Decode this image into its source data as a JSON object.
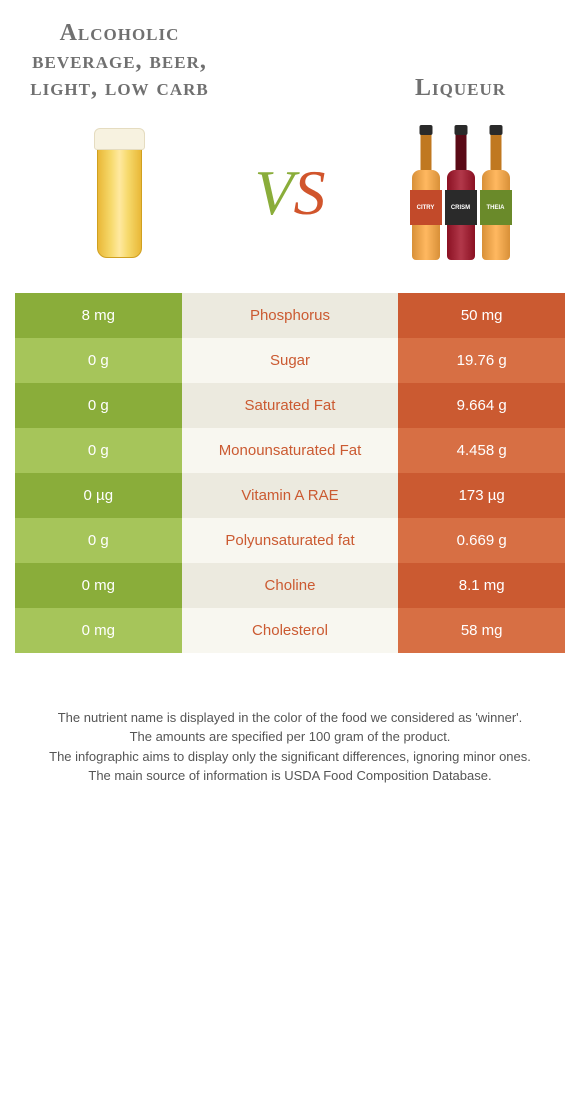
{
  "header": {
    "left_title": "Alcoholic beverage, beer, light, low carb",
    "right_title": "Liqueur",
    "vs_v": "V",
    "vs_s": "S"
  },
  "colors": {
    "green_dark": "#8aad3a",
    "green_light": "#a6c55a",
    "mid_dark": "#eceadf",
    "mid_light": "#f8f7f0",
    "orange_dark": "#cb5a31",
    "orange_light": "#d76f44",
    "winner_orange": "#cb5a31"
  },
  "bottles": [
    {
      "body": "#d89038",
      "neck": "#c07820",
      "label_bg": "#c24a2a",
      "label": "CITRY"
    },
    {
      "body": "#8a1022",
      "neck": "#5a0a16",
      "label_bg": "#2a2a2a",
      "label": "CRISM"
    },
    {
      "body": "#d89038",
      "neck": "#c07820",
      "label_bg": "#6a8a2a",
      "label": "THEIA"
    }
  ],
  "nutrients": [
    {
      "name": "Phosphorus",
      "left": "8 mg",
      "right": "50 mg",
      "winner": "right"
    },
    {
      "name": "Sugar",
      "left": "0 g",
      "right": "19.76 g",
      "winner": "right"
    },
    {
      "name": "Saturated Fat",
      "left": "0 g",
      "right": "9.664 g",
      "winner": "right"
    },
    {
      "name": "Monounsaturated Fat",
      "left": "0 g",
      "right": "4.458 g",
      "winner": "right"
    },
    {
      "name": "Vitamin A RAE",
      "left": "0 µg",
      "right": "173 µg",
      "winner": "right"
    },
    {
      "name": "Polyunsaturated fat",
      "left": "0 g",
      "right": "0.669 g",
      "winner": "right"
    },
    {
      "name": "Choline",
      "left": "0 mg",
      "right": "8.1 mg",
      "winner": "right"
    },
    {
      "name": "Cholesterol",
      "left": "0 mg",
      "right": "58 mg",
      "winner": "right"
    }
  ],
  "footer": {
    "line1": "The nutrient name is displayed in the color of the food we considered as 'winner'.",
    "line2": "The amounts are specified per 100 gram of the product.",
    "line3": "The infographic aims to display only the significant differences, ignoring minor ones.",
    "line4": "The main source of information is USDA Food Composition Database."
  }
}
